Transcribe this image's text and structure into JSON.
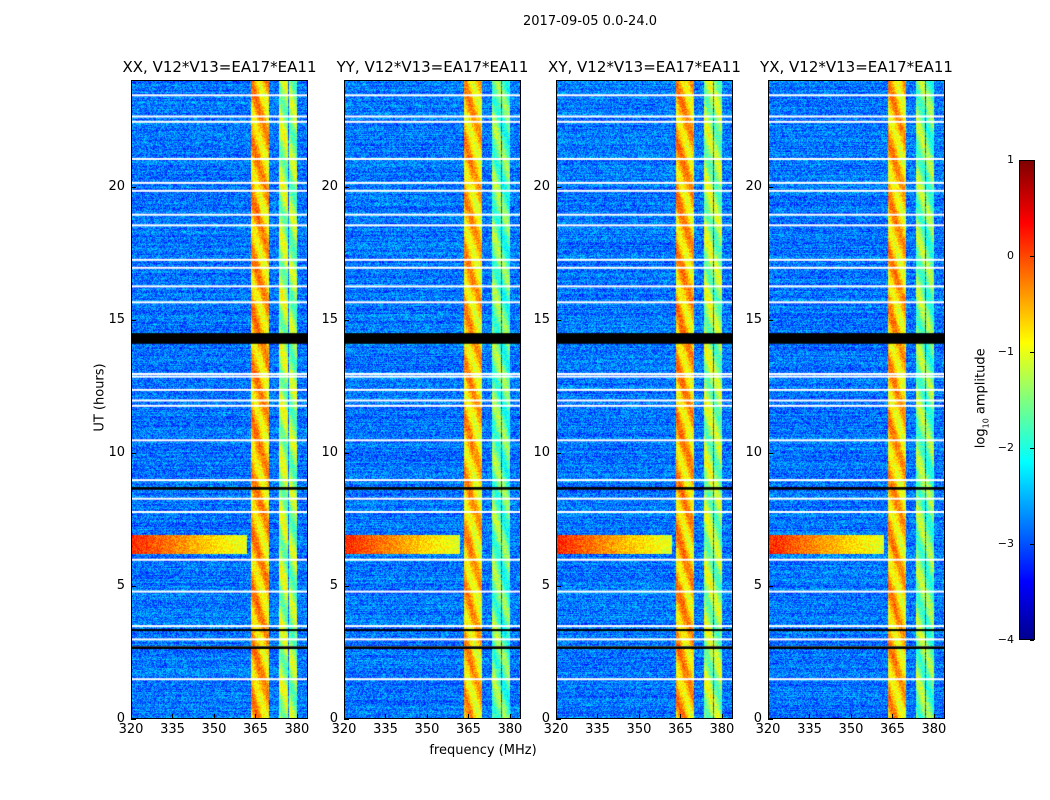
{
  "figure": {
    "suptitle": "2017-09-05 0.0-24.0",
    "ylabel": "UT (hours)",
    "xlabel": "frequency (MHz)",
    "colorbar_label_main": "log",
    "colorbar_label_sub": "10",
    "colorbar_label_rest": " amplitude"
  },
  "chart_data": {
    "type": "heatmap",
    "title": "2017-09-05 0.0-24.0",
    "panels": [
      {
        "title": "XX, V12*V13=EA17*EA11",
        "band_scale": 1.0
      },
      {
        "title": "YY, V12*V13=EA17*EA11",
        "band_scale": 0.8
      },
      {
        "title": "XY, V12*V13=EA17*EA11",
        "band_scale": 1.0
      },
      {
        "title": "YX, V12*V13=EA17*EA11",
        "band_scale": 0.85
      }
    ],
    "xlabel": "frequency (MHz)",
    "ylabel": "UT (hours)",
    "xlim": [
      320,
      384
    ],
    "ylim": [
      0,
      24
    ],
    "xticks": [
      320,
      335,
      350,
      365,
      380
    ],
    "yticks": [
      0,
      5,
      10,
      15,
      20
    ],
    "colorbar": {
      "label": "log10 amplitude",
      "range": [
        -4,
        1
      ],
      "ticks": [
        1,
        0,
        -1,
        -2,
        -3,
        -4
      ],
      "colormap": "jet"
    },
    "background_log_amplitude": -2.8,
    "bands_log_amplitude": [
      {
        "f_start": 363.5,
        "f_end": 366.5,
        "value": -0.3
      },
      {
        "f_start": 366.8,
        "f_end": 369.8,
        "value": -0.4
      },
      {
        "f_start": 373.5,
        "f_end": 377.0,
        "value": -1.1
      },
      {
        "f_start": 377.3,
        "f_end": 380.0,
        "value": -1.2
      }
    ],
    "rfi_event": {
      "t_start": 6.2,
      "t_end": 6.9,
      "value": 0.2
    },
    "flagged_hours_white": [
      23.5,
      22.7,
      22.5,
      21.1,
      20.2,
      19.9,
      19.0,
      18.6,
      17.3,
      17.0,
      16.3,
      15.7,
      13.0,
      12.9,
      12.4,
      12.0,
      11.8,
      10.5,
      9.0,
      8.3,
      7.8,
      6.0,
      4.8,
      3.5,
      3.0,
      2.7,
      1.5
    ],
    "flagged_hours_black": [
      [
        14.1,
        14.5
      ],
      [
        8.6,
        8.7
      ],
      [
        2.6,
        2.7
      ],
      [
        3.3,
        3.35
      ]
    ]
  }
}
